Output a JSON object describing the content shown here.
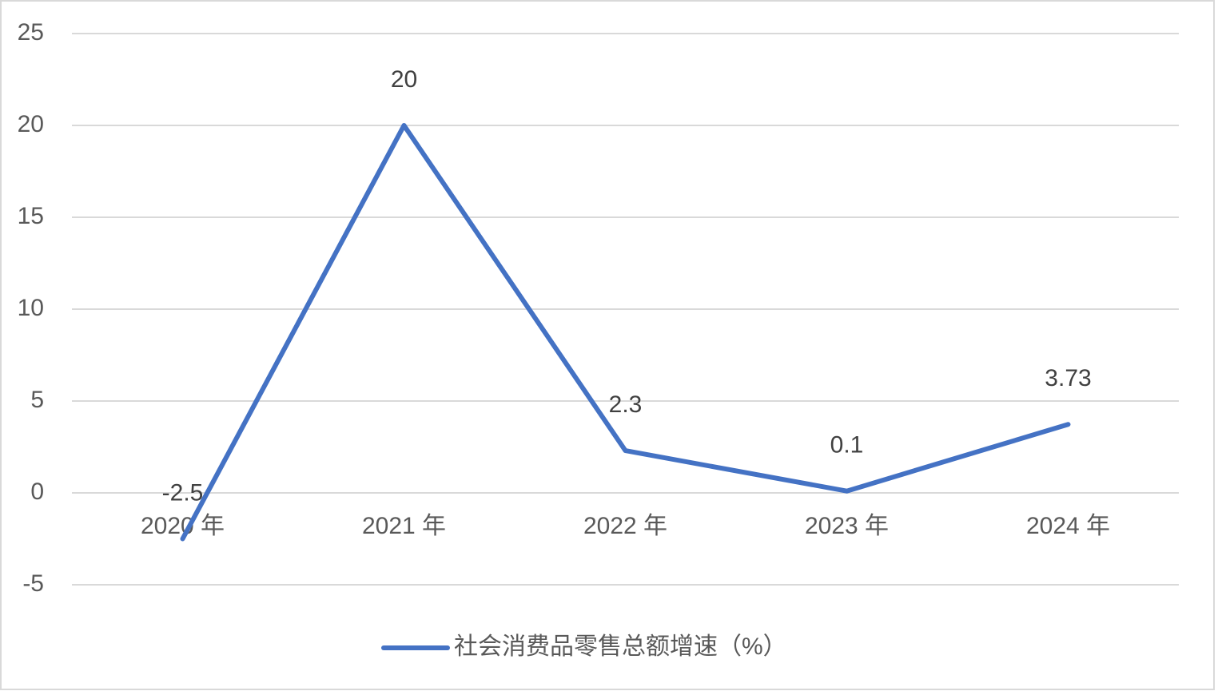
{
  "chart_data": {
    "type": "line",
    "categories": [
      "2020 年",
      "2021 年",
      "2022 年",
      "2023 年",
      "2024 年"
    ],
    "series": [
      {
        "name": "社会消费品零售总额增速（%）",
        "color": "#4472c4",
        "values": [
          -2.5,
          20,
          2.3,
          0.1,
          3.73
        ]
      }
    ],
    "ylim": [
      -5,
      25
    ],
    "yticks": [
      -5,
      0,
      5,
      10,
      15,
      20,
      25
    ],
    "grid": true,
    "data_labels": true,
    "legend": "bottom"
  }
}
